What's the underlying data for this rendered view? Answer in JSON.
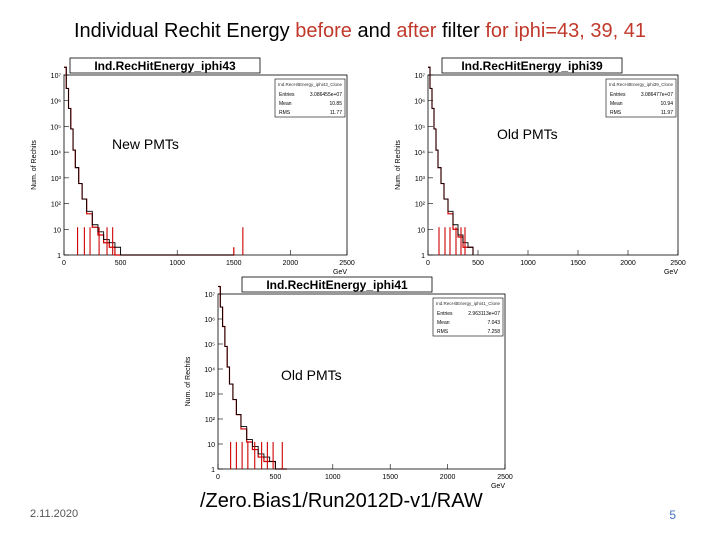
{
  "slide": {
    "title_part1": "Individual Rechit Energy  ",
    "title_part2": "before",
    "title_part3": " and ",
    "title_part4": "after",
    "title_part5": " filter ",
    "title_part6": "for iphi=43, 39, 41",
    "label_new": "New PMTs",
    "label_old1": "Old PMTs",
    "label_old2": "Old PMTs",
    "date": "2.11.2020",
    "dataset": "/Zero.Bias1/Run2012D-v1/RAW",
    "page": "5"
  },
  "colors": {
    "title_highlight": "#c0392b",
    "before": "#000000",
    "after": "#cc0000",
    "page_number": "#4472c4"
  },
  "chart_data": [
    {
      "type": "line",
      "title": "Ind.RecHitEnergy_iphi43",
      "xlabel": "GeV",
      "ylabel": "Num. of Rechits",
      "xlim": [
        0,
        2500
      ],
      "ylim_log": [
        1,
        10000000
      ],
      "log_y": true,
      "x_ticks": [
        "0",
        "500",
        "1000",
        "1500",
        "2000",
        "2500"
      ],
      "y_ticks": [
        "1",
        "10",
        "10²",
        "10³",
        "10⁴",
        "10⁵",
        "10⁶",
        "10⁷"
      ],
      "stats": {
        "header": "Ind.RecHitEnergy_iphi43_Clone",
        "entries": "3.086455e+07",
        "mean": "10.85",
        "rms": "11.77"
      },
      "x": [
        0,
        20,
        40,
        60,
        80,
        100,
        130,
        160,
        200,
        250,
        300,
        350,
        400,
        450,
        500,
        600,
        700,
        1500
      ],
      "before": [
        20000000,
        3000000,
        500000,
        80000,
        12000,
        2500,
        600,
        150,
        50,
        15,
        8,
        4,
        3,
        2,
        1,
        1,
        1,
        1
      ],
      "after": [
        20000000,
        3000000,
        500000,
        80000,
        12000,
        2500,
        600,
        150,
        40,
        12,
        6,
        3,
        2,
        1,
        1,
        1,
        1,
        2
      ],
      "spikes": [
        120,
        180,
        230,
        310,
        380,
        430,
        1580
      ]
    },
    {
      "type": "line",
      "title": "Ind.RecHitEnergy_iphi39",
      "xlabel": "GeV",
      "ylabel": "Num. of Rechits",
      "xlim": [
        0,
        2500
      ],
      "ylim_log": [
        1,
        10000000
      ],
      "log_y": true,
      "x_ticks": [
        "0",
        "500",
        "1000",
        "1500",
        "2000",
        "2500"
      ],
      "y_ticks": [
        "1",
        "10",
        "10²",
        "10³",
        "10⁴",
        "10⁵",
        "10⁶",
        "10⁷"
      ],
      "stats": {
        "header": "Ind.RecHitEnergy_iphi39_Clone",
        "entries": "3.086477e+07",
        "mean": "10.94",
        "rms": "11.97"
      },
      "x": [
        0,
        20,
        40,
        60,
        80,
        100,
        130,
        160,
        200,
        250,
        300,
        350,
        400,
        450
      ],
      "before": [
        20000000,
        3000000,
        500000,
        80000,
        12000,
        2500,
        600,
        150,
        50,
        15,
        6,
        3,
        2,
        1
      ],
      "after": [
        20000000,
        3000000,
        500000,
        80000,
        12000,
        2500,
        600,
        150,
        40,
        10,
        5,
        2,
        2,
        1
      ],
      "spikes": [
        110,
        170,
        220,
        280,
        330,
        370
      ]
    },
    {
      "type": "line",
      "title": "Ind.RecHitEnergy_iphi41",
      "xlabel": "GeV",
      "ylabel": "Num. of Rechits",
      "xlim": [
        0,
        2500
      ],
      "ylim_log": [
        1,
        10000000
      ],
      "log_y": true,
      "x_ticks": [
        "0",
        "500",
        "1000",
        "1500",
        "2000",
        "2500"
      ],
      "y_ticks": [
        "1",
        "10",
        "10²",
        "10³",
        "10⁴",
        "10⁵",
        "10⁶",
        "10⁷"
      ],
      "stats": {
        "header": "Ind.RecHitEnergy_iphi41_Clone",
        "entries": "2.963113e+07",
        "mean": "7.043",
        "rms": "7.258"
      },
      "x": [
        0,
        20,
        40,
        60,
        80,
        100,
        130,
        160,
        200,
        250,
        300,
        350,
        400,
        450,
        500,
        600
      ],
      "before": [
        20000000,
        3000000,
        500000,
        80000,
        12000,
        2500,
        600,
        150,
        50,
        15,
        8,
        4,
        3,
        2,
        1,
        1
      ],
      "after": [
        20000000,
        3000000,
        500000,
        80000,
        12000,
        2500,
        600,
        150,
        40,
        12,
        6,
        3,
        2,
        2,
        1,
        1
      ],
      "spikes": [
        110,
        160,
        210,
        260,
        320,
        380,
        430,
        480,
        560
      ]
    }
  ]
}
